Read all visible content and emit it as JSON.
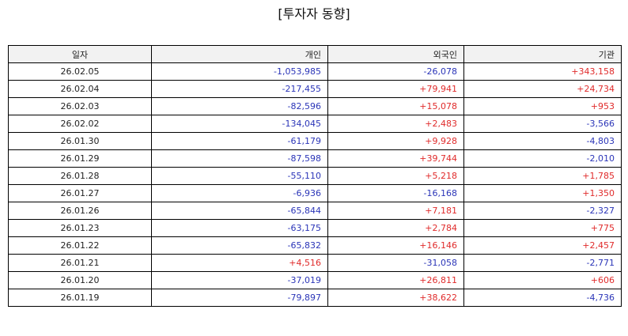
{
  "title": "[투자자 동향]",
  "colors": {
    "positive": "#e02b2b",
    "negative": "#2b35b8",
    "header_bg": "#f2f2f2"
  },
  "table": {
    "headers": [
      "일자",
      "개인",
      "외국인",
      "기관"
    ],
    "rows": [
      {
        "date": "26.02.05",
        "individual": "-1,053,985",
        "foreign": "-26,078",
        "institution": "+343,158"
      },
      {
        "date": "26.02.04",
        "individual": "-217,455",
        "foreign": "+79,941",
        "institution": "+24,734"
      },
      {
        "date": "26.02.03",
        "individual": "-82,596",
        "foreign": "+15,078",
        "institution": "+953"
      },
      {
        "date": "26.02.02",
        "individual": "-134,045",
        "foreign": "+2,483",
        "institution": "-3,566"
      },
      {
        "date": "26.01.30",
        "individual": "-61,179",
        "foreign": "+9,928",
        "institution": "-4,803"
      },
      {
        "date": "26.01.29",
        "individual": "-87,598",
        "foreign": "+39,744",
        "institution": "-2,010"
      },
      {
        "date": "26.01.28",
        "individual": "-55,110",
        "foreign": "+5,218",
        "institution": "+1,785"
      },
      {
        "date": "26.01.27",
        "individual": "-6,936",
        "foreign": "-16,168",
        "institution": "+1,350"
      },
      {
        "date": "26.01.26",
        "individual": "-65,844",
        "foreign": "+7,181",
        "institution": "-2,327"
      },
      {
        "date": "26.01.23",
        "individual": "-63,175",
        "foreign": "+2,784",
        "institution": "+775"
      },
      {
        "date": "26.01.22",
        "individual": "-65,832",
        "foreign": "+16,146",
        "institution": "+2,457"
      },
      {
        "date": "26.01.21",
        "individual": "+4,516",
        "foreign": "-31,058",
        "institution": "-2,771"
      },
      {
        "date": "26.01.20",
        "individual": "-37,019",
        "foreign": "+26,811",
        "institution": "+606"
      },
      {
        "date": "26.01.19",
        "individual": "-79,897",
        "foreign": "+38,622",
        "institution": "-4,736"
      }
    ]
  }
}
